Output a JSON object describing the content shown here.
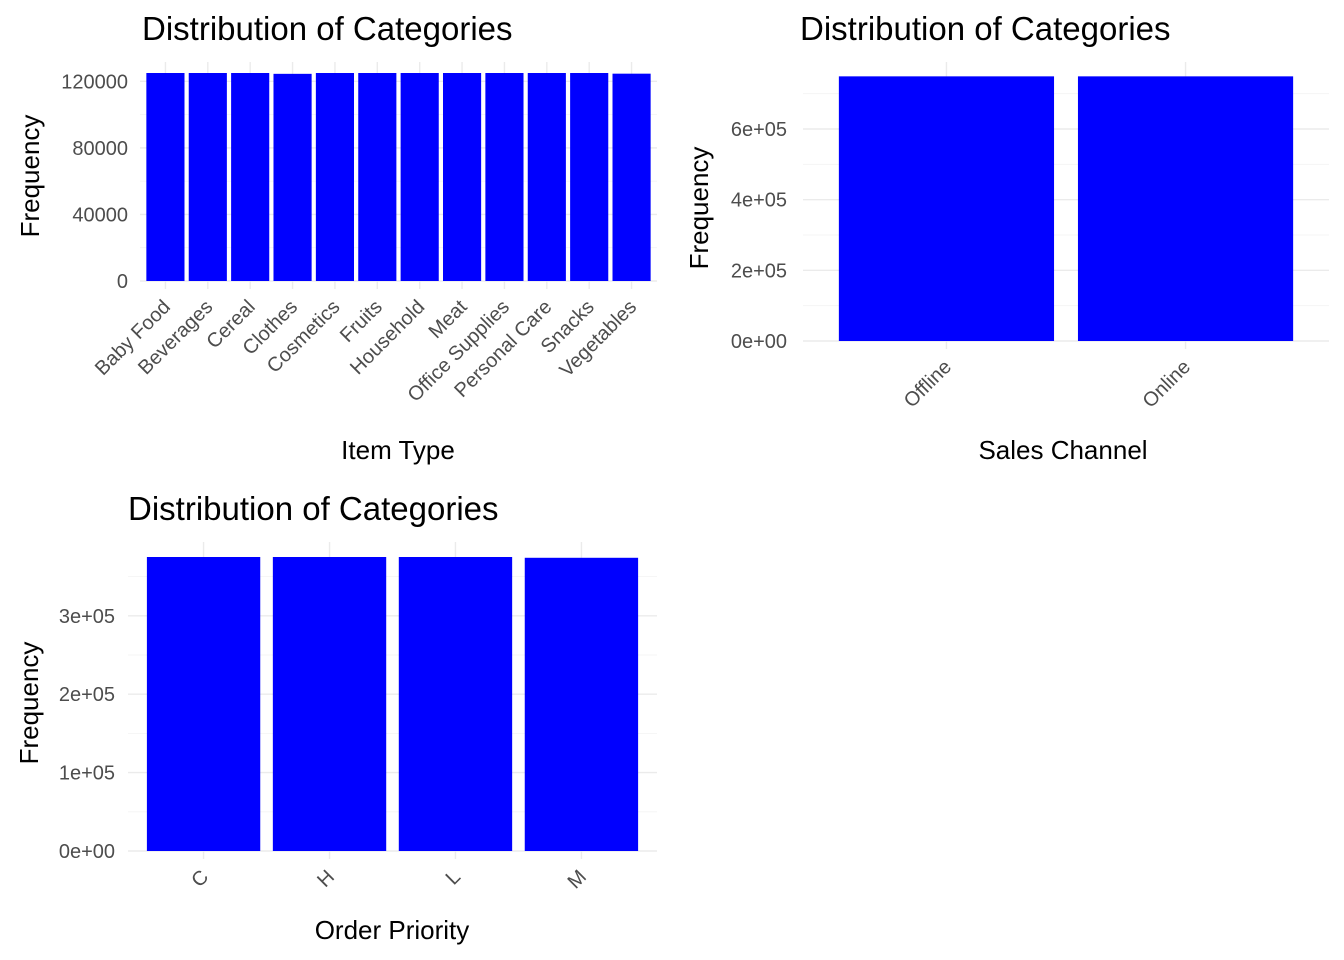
{
  "colors": {
    "bar": "#0000ff",
    "grid_major": "#ebebeb",
    "grid_minor": "#f4f4f4",
    "tick_text": "#4d4d4d"
  },
  "chart_data": [
    {
      "type": "bar",
      "title": "Distribution of Categories",
      "xlabel": "Item Type",
      "ylabel": "Frequency",
      "categories": [
        "Baby Food",
        "Beverages",
        "Cereal",
        "Clothes",
        "Cosmetics",
        "Fruits",
        "Household",
        "Meat",
        "Office Supplies",
        "Personal Care",
        "Snacks",
        "Vegetables"
      ],
      "values": [
        125000,
        125000,
        125000,
        124500,
        125000,
        125000,
        125000,
        125000,
        125000,
        125000,
        125000,
        124600
      ],
      "ylim": [
        0,
        125000
      ],
      "yticks": [
        0,
        40000,
        80000,
        120000
      ],
      "ytick_labels": [
        "0",
        "40000",
        "80000",
        "120000"
      ],
      "x_tick_rotation": 45,
      "grid": true
    },
    {
      "type": "bar",
      "title": "Distribution of Categories",
      "xlabel": "Sales Channel",
      "ylabel": "Frequency",
      "categories": [
        "Offline",
        "Online"
      ],
      "values": [
        749000,
        749000
      ],
      "ylim": [
        0,
        750000
      ],
      "yticks": [
        0,
        200000,
        400000,
        600000
      ],
      "ytick_labels": [
        "0e+00",
        "2e+05",
        "4e+05",
        "6e+05"
      ],
      "x_tick_rotation": 45,
      "grid": true
    },
    {
      "type": "bar",
      "title": "Distribution of Categories",
      "xlabel": "Order Priority",
      "ylabel": "Frequency",
      "categories": [
        "C",
        "H",
        "L",
        "M"
      ],
      "values": [
        375000,
        375000,
        375000,
        374000
      ],
      "ylim": [
        0,
        375000
      ],
      "yticks": [
        0,
        100000,
        200000,
        300000
      ],
      "ytick_labels": [
        "0e+00",
        "1e+05",
        "2e+05",
        "3e+05"
      ],
      "x_tick_rotation": 45,
      "grid": true
    }
  ]
}
